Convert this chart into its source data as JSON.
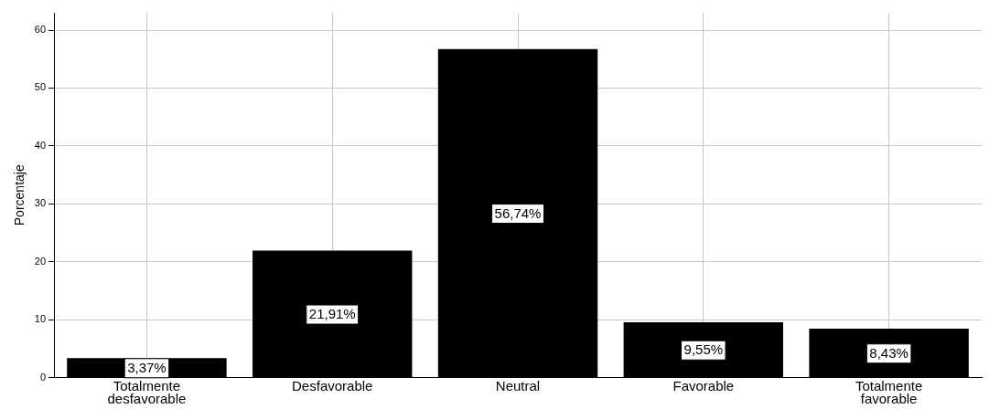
{
  "chart_data": {
    "type": "bar",
    "ylabel": "Porcentaje",
    "categories": [
      "Totalmente desfavorable",
      "Desfavorable",
      "Neutral",
      "Favorable",
      "Totalmente favorable"
    ],
    "values": [
      3.37,
      21.91,
      56.74,
      9.55,
      8.43
    ],
    "value_labels": [
      "3,37%",
      "21,91%",
      "56,74%",
      "9,55%",
      "8,43%"
    ],
    "color": "#000000",
    "ylim": [
      0,
      63
    ],
    "yticks": [
      0,
      10,
      20,
      30,
      40,
      50,
      60
    ],
    "grid": true,
    "legend": false
  }
}
